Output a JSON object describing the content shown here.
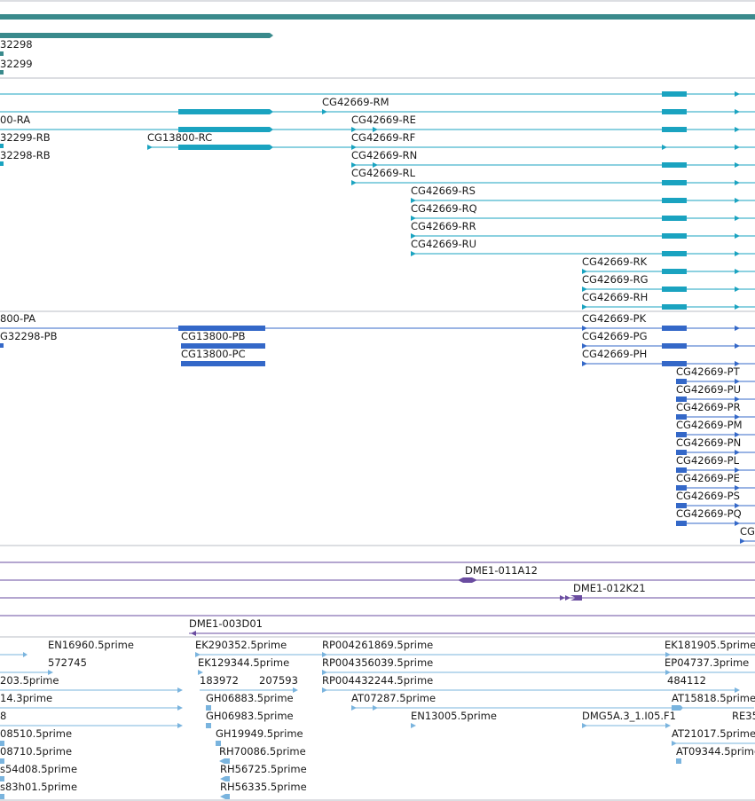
{
  "colors": {
    "gene": "#3a8a8c",
    "mrna": "#1aa3c0",
    "protein": "#3468c8",
    "clone": "#6a4ca0",
    "est": "#7ab4de",
    "divider": "#b8bcc4"
  },
  "genes": {
    "labels": [
      "32298",
      "32299"
    ]
  },
  "mrna": {
    "labels": [
      "CG42669-RM",
      "00-RA",
      "CG42669-RE",
      "32299-RB",
      "CG13800-RC",
      "CG42669-RF",
      "32298-RB",
      "CG42669-RN",
      "CG42669-RL",
      "CG42669-RS",
      "CG42669-RQ",
      "CG42669-RR",
      "CG42669-RU",
      "CG42669-RK",
      "CG42669-RG",
      "CG42669-RH"
    ]
  },
  "proteins": {
    "labels": [
      "800-PA",
      "CG42669-PK",
      "G32298-PB",
      "CG13800-PB",
      "CG42669-PG",
      "CG13800-PC",
      "CG42669-PH",
      "CG42669-PT",
      "CG42669-PU",
      "CG42669-PR",
      "CG42669-PM",
      "CG42669-PN",
      "CG42669-PL",
      "CG42669-PE",
      "CG42669-PS",
      "CG42669-PQ",
      "CG"
    ]
  },
  "clones": {
    "labels": [
      "DME1-011A12",
      "DME1-012K21",
      "DME1-003D01"
    ]
  },
  "ests": {
    "labels": [
      "EN16960.5prime",
      "EK290352.5prime",
      "RP004261869.5prime",
      "EK181905.5prime",
      "572745",
      "EK129344.5prime",
      "RP004356039.5prime",
      "EP04737.3prime",
      "203.5prime",
      "183972",
      "207593",
      "RP004432244.5prime",
      "484112",
      "14.3prime",
      "GH06883.5prime",
      "AT07287.5prime",
      "AT15818.5prime",
      "8",
      "GH06983.5prime",
      "EN13005.5prime",
      "DMG5A.3_1.I05.F1",
      "RE35",
      "08510.5prime",
      "GH19949.5prime",
      "AT21017.5prime",
      "08710.5prime",
      "RH70086.5prime",
      "AT09344.5prime",
      "s54d08.5prime",
      "RH56725.5prime",
      "s83h01.5prime",
      "RH56335.5prime"
    ]
  }
}
